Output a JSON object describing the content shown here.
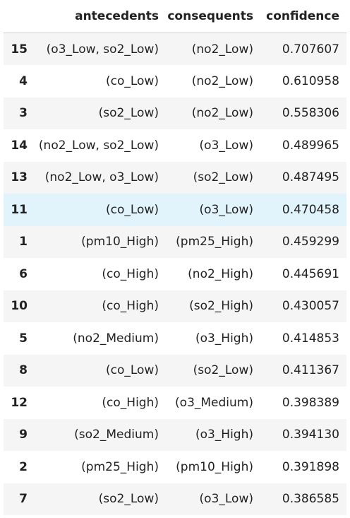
{
  "table": {
    "columns": [
      "antecedents",
      "consequents",
      "confidence"
    ],
    "rows": [
      {
        "index": "15",
        "antecedents": "(o3_Low, so2_Low)",
        "consequents": "(no2_Low)",
        "confidence": "0.707607"
      },
      {
        "index": "4",
        "antecedents": "(co_Low)",
        "consequents": "(no2_Low)",
        "confidence": "0.610958"
      },
      {
        "index": "3",
        "antecedents": "(so2_Low)",
        "consequents": "(no2_Low)",
        "confidence": "0.558306"
      },
      {
        "index": "14",
        "antecedents": "(no2_Low, so2_Low)",
        "consequents": "(o3_Low)",
        "confidence": "0.489965"
      },
      {
        "index": "13",
        "antecedents": "(no2_Low, o3_Low)",
        "consequents": "(so2_Low)",
        "confidence": "0.487495"
      },
      {
        "index": "11",
        "antecedents": "(co_Low)",
        "consequents": "(o3_Low)",
        "confidence": "0.470458",
        "hovered": true
      },
      {
        "index": "1",
        "antecedents": "(pm10_High)",
        "consequents": "(pm25_High)",
        "confidence": "0.459299"
      },
      {
        "index": "6",
        "antecedents": "(co_High)",
        "consequents": "(no2_High)",
        "confidence": "0.445691"
      },
      {
        "index": "10",
        "antecedents": "(co_High)",
        "consequents": "(so2_High)",
        "confidence": "0.430057"
      },
      {
        "index": "5",
        "antecedents": "(no2_Medium)",
        "consequents": "(o3_High)",
        "confidence": "0.414853"
      },
      {
        "index": "8",
        "antecedents": "(co_Low)",
        "consequents": "(so2_Low)",
        "confidence": "0.411367"
      },
      {
        "index": "12",
        "antecedents": "(co_High)",
        "consequents": "(o3_Medium)",
        "confidence": "0.398389"
      },
      {
        "index": "9",
        "antecedents": "(so2_Medium)",
        "consequents": "(o3_High)",
        "confidence": "0.394130"
      },
      {
        "index": "2",
        "antecedents": "(pm25_High)",
        "consequents": "(pm10_High)",
        "confidence": "0.391898"
      },
      {
        "index": "7",
        "antecedents": "(so2_Low)",
        "consequents": "(o3_Low)",
        "confidence": "0.386585"
      }
    ]
  },
  "colors": {
    "stripe": "#f5f5f5",
    "hover": "#e1f3fb",
    "header_border": "#cfcfcf"
  }
}
